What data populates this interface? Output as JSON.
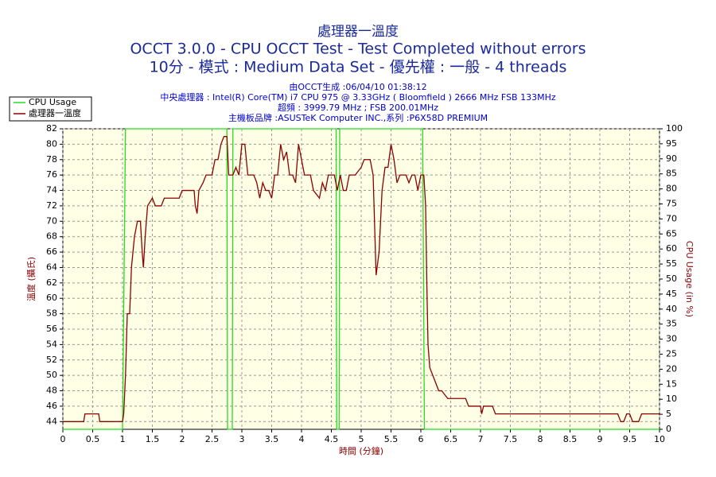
{
  "chart_data": {
    "type": "line",
    "title": "處理器一溫度",
    "subtitle": [
      "OCCT 3.0.0 - CPU OCCT Test - Test Completed without errors",
      "10分 - 模式 : Medium Data Set - 優先權 : 一般 - 4 threads"
    ],
    "info": [
      "由OCCT生成 :06/04/10 01:38:12",
      "中央處理器 : Intel(R) Core(TM) i7 CPU 975 @ 3.33GHz ( Bloomfield ) 2666 MHz FSB 133MHz",
      "超頻 : 3999.79 MHz ; FSB 200.01MHz",
      "主機板品牌 :ASUSTeK Computer INC.,系列 :P6X58D PREMIUM"
    ],
    "xlabel": "時間 (分鐘)",
    "ylabel": "溫度 (攝氏)",
    "y2label": "CPU Usage (in %)",
    "xlim": [
      0,
      10
    ],
    "xticks": [
      0,
      0.5,
      1,
      1.5,
      2,
      2.5,
      3,
      3.5,
      4,
      4.5,
      5,
      5.5,
      6,
      6.5,
      7,
      7.5,
      8,
      8.5,
      9,
      9.5,
      10
    ],
    "ylim": [
      43,
      82
    ],
    "yticks": [
      44,
      46,
      48,
      50,
      52,
      54,
      56,
      58,
      60,
      62,
      64,
      66,
      68,
      70,
      72,
      74,
      76,
      78,
      80,
      82
    ],
    "y2lim": [
      0,
      100
    ],
    "y2ticks": [
      0,
      5,
      10,
      15,
      20,
      25,
      30,
      35,
      40,
      45,
      50,
      55,
      60,
      65,
      70,
      75,
      80,
      85,
      90,
      95,
      100
    ],
    "grid": true,
    "legend": "top-left",
    "series": [
      {
        "name": "CPU Usage",
        "color": "#22dd22",
        "axis": "y2",
        "x": [
          0,
          1.0,
          1.05,
          2.75,
          2.76,
          2.84,
          2.85,
          4.58,
          4.59,
          4.63,
          4.64,
          6.03,
          6.06,
          10
        ],
        "values": [
          0,
          0,
          100,
          100,
          0,
          0,
          100,
          100,
          0,
          0,
          100,
          100,
          0,
          0
        ]
      },
      {
        "name": "處理器一溫度",
        "color": "#8b0000",
        "axis": "y",
        "x": [
          0,
          0.35,
          0.37,
          0.6,
          0.62,
          1.0,
          1.02,
          1.05,
          1.08,
          1.12,
          1.15,
          1.2,
          1.25,
          1.3,
          1.33,
          1.35,
          1.38,
          1.42,
          1.5,
          1.55,
          1.65,
          1.7,
          1.95,
          2.0,
          2.2,
          2.22,
          2.25,
          2.28,
          2.35,
          2.4,
          2.5,
          2.55,
          2.6,
          2.65,
          2.7,
          2.75,
          2.78,
          2.85,
          2.9,
          2.95,
          3.0,
          3.05,
          3.1,
          3.2,
          3.25,
          3.3,
          3.35,
          3.4,
          3.45,
          3.5,
          3.55,
          3.6,
          3.65,
          3.7,
          3.75,
          3.8,
          3.85,
          3.9,
          3.95,
          4.0,
          4.05,
          4.15,
          4.2,
          4.3,
          4.35,
          4.4,
          4.45,
          4.55,
          4.6,
          4.65,
          4.7,
          4.75,
          4.8,
          4.9,
          5.0,
          5.05,
          5.15,
          5.2,
          5.25,
          5.3,
          5.35,
          5.4,
          5.45,
          5.5,
          5.55,
          5.6,
          5.65,
          5.75,
          5.8,
          5.85,
          5.9,
          5.95,
          6.0,
          6.05,
          6.08,
          6.1,
          6.12,
          6.15,
          6.2,
          6.3,
          6.35,
          6.45,
          6.75,
          6.8,
          7.0,
          7.02,
          7.05,
          7.2,
          7.25,
          9.3,
          9.35,
          9.4,
          9.45,
          9.5,
          9.55,
          9.65,
          9.7,
          10
        ],
        "values": [
          44,
          44,
          45,
          45,
          44,
          44,
          45,
          50,
          58,
          58,
          64,
          68,
          70,
          70,
          66,
          64,
          68,
          72,
          73,
          72,
          72,
          73,
          73,
          74,
          74,
          72,
          71,
          74,
          75,
          76,
          76,
          78,
          78,
          80,
          81,
          81,
          76,
          76,
          77,
          76,
          80,
          80,
          76,
          76,
          75,
          73,
          75,
          74,
          74,
          73,
          76,
          76,
          80,
          78,
          79,
          76,
          76,
          75,
          80,
          78,
          76,
          76,
          74,
          73,
          75,
          74,
          76,
          76,
          74,
          76,
          74,
          74,
          76,
          76,
          77,
          78,
          78,
          76,
          63,
          66,
          74,
          77,
          77,
          80,
          78,
          75,
          76,
          76,
          75,
          76,
          76,
          74,
          76,
          76,
          72,
          62,
          54,
          51,
          50,
          48,
          48,
          47,
          47,
          46,
          46,
          45,
          46,
          46,
          45,
          45,
          44,
          44,
          45,
          45,
          44,
          44,
          45,
          45
        ]
      }
    ]
  }
}
